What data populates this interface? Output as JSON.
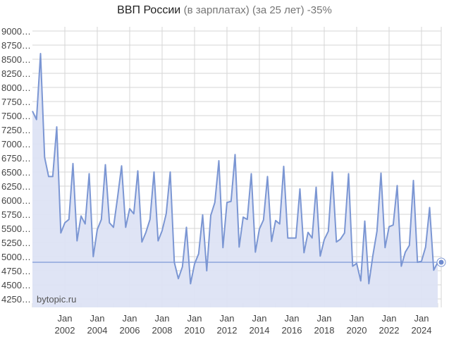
{
  "title": {
    "main": "ВВП России",
    "subtitle": "(в зарплатах) (за 25 лет) -35%"
  },
  "watermark": "bytopic.ru",
  "colors": {
    "line": "#7b96d3",
    "fill": "#dde3f4",
    "grid": "#d6d6d6",
    "baseline": "#8ea5dc",
    "marker": "#6f8bcf"
  },
  "chart_data": {
    "type": "area",
    "title": "ВВП России (в зарплатах) (за 25 лет) -35%",
    "xlabel": "",
    "ylabel": "",
    "ylim": [
      4125,
      9050
    ],
    "grid": true,
    "legend": "none",
    "y_ticks": [
      "9000…",
      "8750…",
      "8500…",
      "8250…",
      "8000…",
      "7750…",
      "7500…",
      "7250…",
      "7000…",
      "6750…",
      "6500…",
      "6250…",
      "6000…",
      "5750…",
      "5500…",
      "5250…",
      "5000…",
      "4750…",
      "4500…",
      "4250…"
    ],
    "x_ticks": [
      {
        "line1": "Jan",
        "line2": "2002"
      },
      {
        "line1": "Jan",
        "line2": "2004"
      },
      {
        "line1": "Jan",
        "line2": "2006"
      },
      {
        "line1": "Jan",
        "line2": "2008"
      },
      {
        "line1": "Jan",
        "line2": "2010"
      },
      {
        "line1": "Jan",
        "line2": "2012"
      },
      {
        "line1": "Jan",
        "line2": "2014"
      },
      {
        "line1": "Jan",
        "line2": "2016"
      },
      {
        "line1": "Jan",
        "line2": "2018"
      },
      {
        "line1": "Jan",
        "line2": "2020"
      },
      {
        "line1": "Jan",
        "line2": "2022"
      },
      {
        "line1": "Jan",
        "line2": "2024"
      }
    ],
    "reference_line": 4900,
    "frequency": "quarterly",
    "start": "2000-Q1",
    "series": [
      {
        "name": "ВВП России (в зарплатах)",
        "values": [
          7580,
          7430,
          8600,
          6760,
          6420,
          6420,
          7300,
          5420,
          5600,
          5660,
          6650,
          5280,
          5720,
          5580,
          6470,
          5000,
          5480,
          5660,
          6630,
          5600,
          5520,
          6050,
          6610,
          5520,
          5850,
          5760,
          6520,
          5260,
          5430,
          5660,
          6500,
          5280,
          5460,
          5760,
          6500,
          4900,
          4610,
          4820,
          5520,
          4520,
          4870,
          5050,
          5740,
          4750,
          5730,
          5960,
          6700,
          5160,
          5960,
          5980,
          6810,
          5170,
          5700,
          5660,
          6470,
          5080,
          5490,
          5650,
          6420,
          5270,
          5640,
          5580,
          6600,
          5330,
          5330,
          5330,
          6200,
          5070,
          5430,
          5330,
          6230,
          5010,
          5300,
          5450,
          6500,
          5260,
          5310,
          5420,
          6470,
          4830,
          4880,
          4570,
          5630,
          4520,
          5020,
          5450,
          6480,
          5160,
          5530,
          5560,
          6260,
          4830,
          5080,
          5200,
          6350,
          4900,
          4920,
          5170,
          5870,
          4760,
          4900
        ]
      }
    ]
  }
}
